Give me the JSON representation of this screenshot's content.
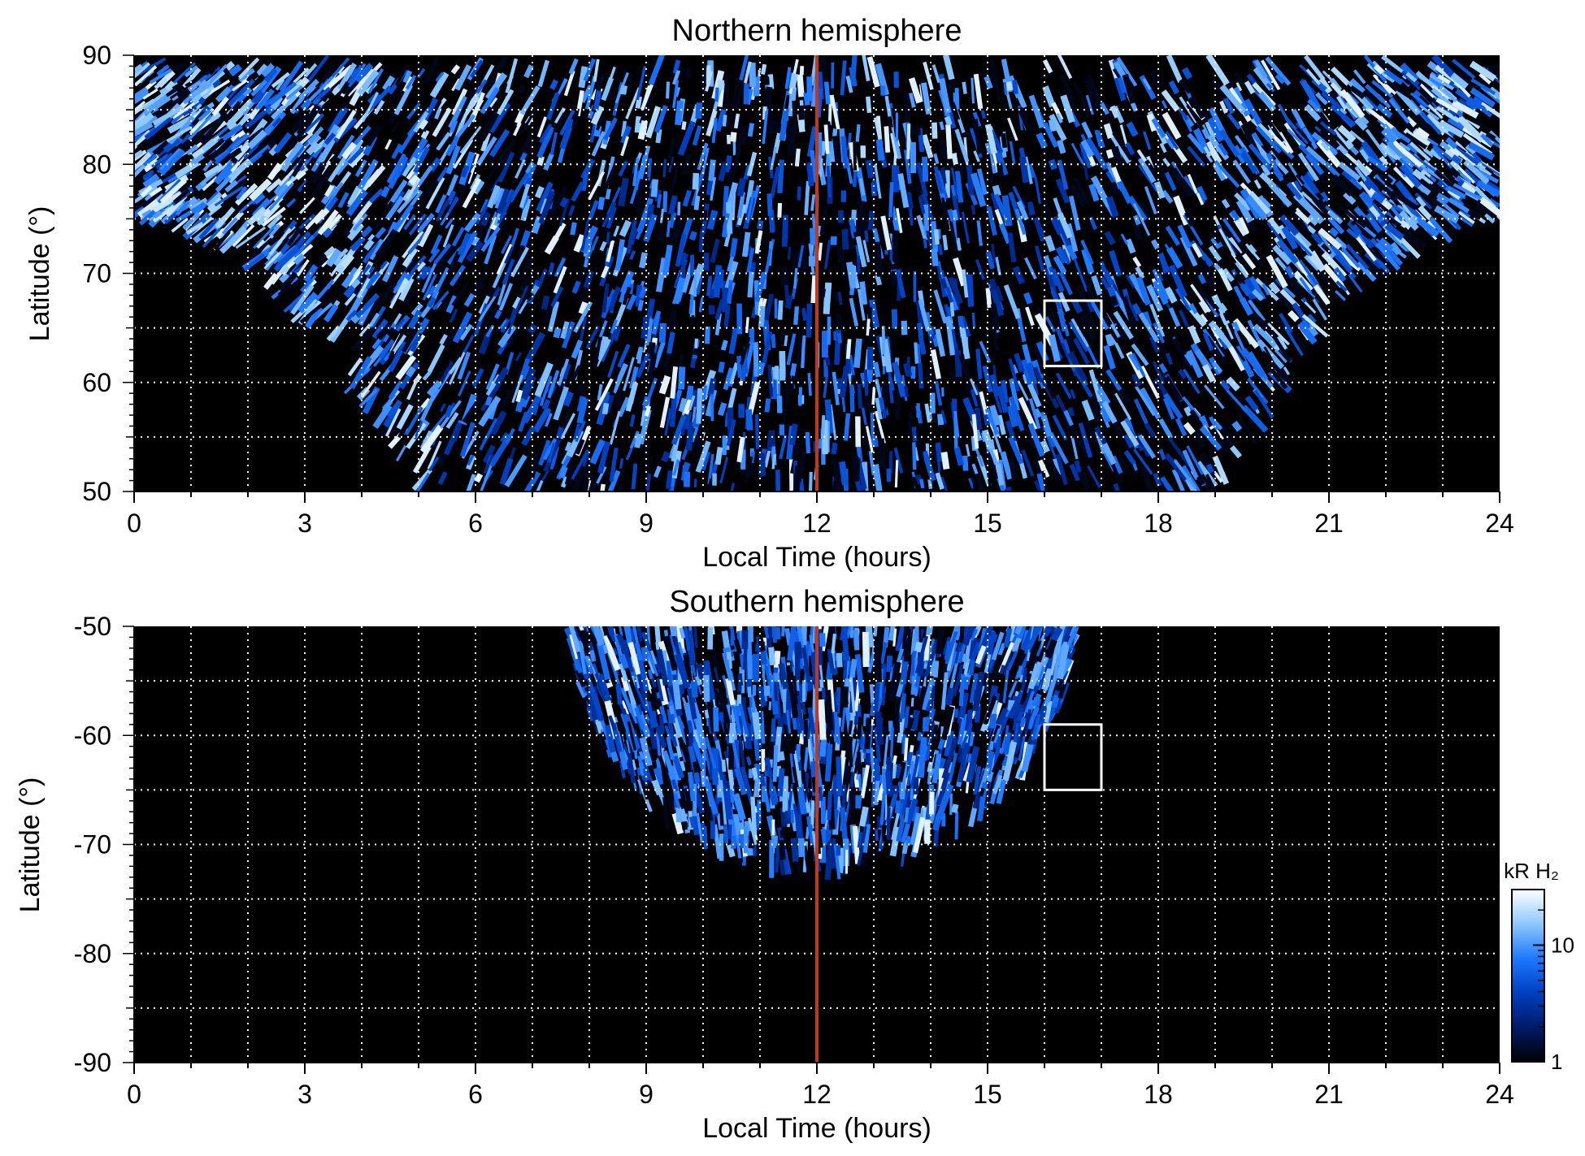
{
  "chart_data": [
    {
      "type": "heatmap",
      "title": "Northern hemisphere",
      "xlabel": "Local Time (hours)",
      "ylabel": "Latitude (°)",
      "xlim": [
        0,
        24
      ],
      "ylim": [
        50,
        90
      ],
      "x_ticks": [
        "0",
        "3",
        "6",
        "9",
        "12",
        "15",
        "18",
        "21",
        "24"
      ],
      "y_ticks": [
        "50",
        "60",
        "70",
        "80",
        "90"
      ],
      "grid": true,
      "reference_line": {
        "x": 12,
        "color": "#c0391b"
      },
      "highlight_box": {
        "x_range": [
          16,
          17
        ],
        "lat_range": [
          61.5,
          67.5
        ],
        "color": "#ffffff"
      },
      "coverage": "lower boundary ~75° at 0 h and 24 h, dipping to 50° between ~5 h and ~19 h"
    },
    {
      "type": "heatmap",
      "title": "Southern hemisphere",
      "xlabel": "Local Time (hours)",
      "ylabel": "Latitude (°)",
      "xlim": [
        0,
        24
      ],
      "ylim": [
        -90,
        -50
      ],
      "x_ticks": [
        "0",
        "3",
        "6",
        "9",
        "12",
        "15",
        "18",
        "21",
        "24"
      ],
      "y_ticks": [
        "-50",
        "-60",
        "-70",
        "-80",
        "-90"
      ],
      "grid": true,
      "reference_line": {
        "x": 12,
        "color": "#c0391b"
      },
      "highlight_box": {
        "x_range": [
          16,
          17
        ],
        "lat_range": [
          -65,
          -59
        ],
        "color": "#ffffff"
      },
      "coverage": "data from about 7.7 h to 16.5 h local time, reaching down to about -72° near 12 h"
    }
  ],
  "colorbar": {
    "label": "kR H₂",
    "ticks": [
      "1",
      "10"
    ],
    "scale": "log",
    "range": [
      1,
      30
    ],
    "colors": [
      "#000000",
      "#001a66",
      "#0040c0",
      "#1e78ff",
      "#8cc8ff",
      "#ffffff"
    ]
  }
}
